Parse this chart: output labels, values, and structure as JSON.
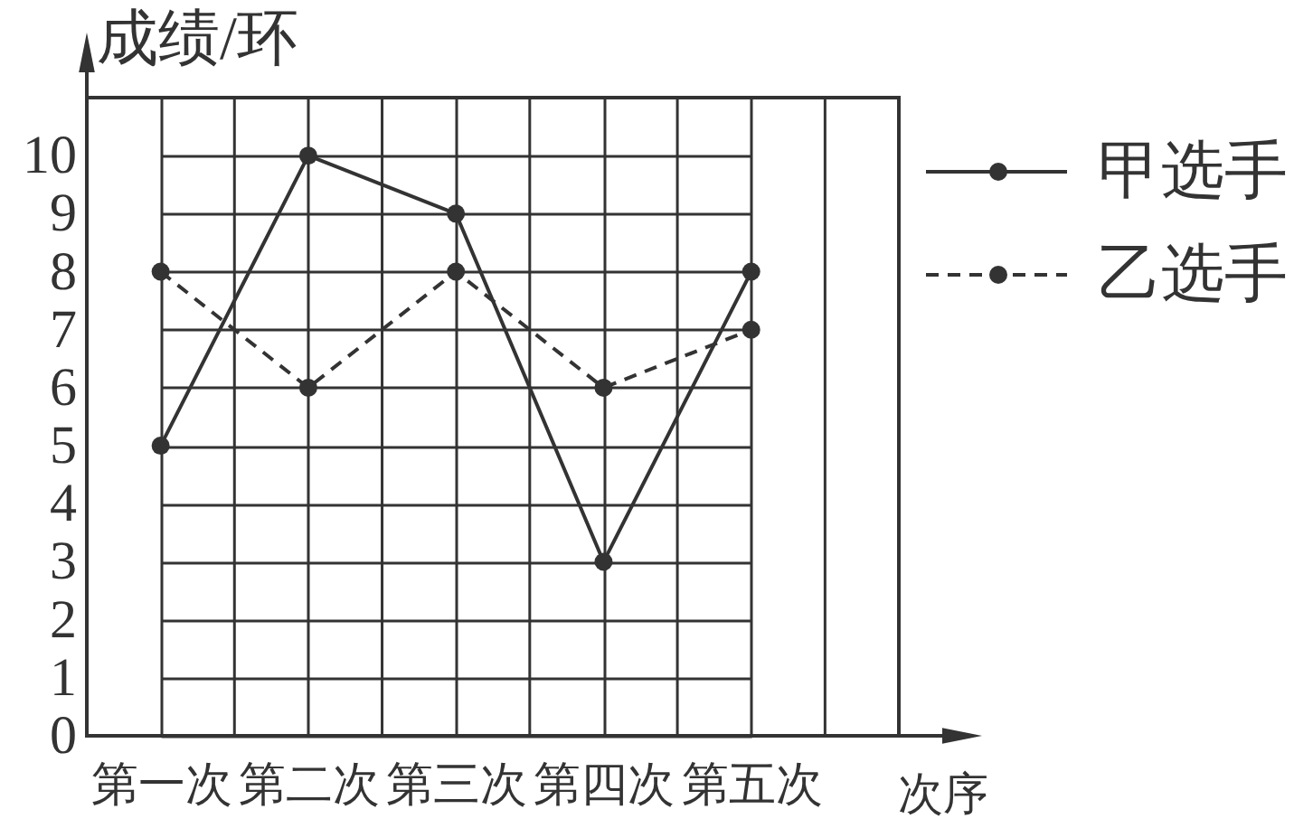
{
  "chart_data": {
    "type": "line",
    "xlabel": "次序",
    "ylabel": "成绩/环",
    "categories": [
      "第一次",
      "第二次",
      "第三次",
      "第四次",
      "第五次"
    ],
    "series": [
      {
        "name": "甲选手",
        "color": "#333333",
        "line_style": "solid",
        "values": [
          5,
          10,
          9,
          3,
          8
        ]
      },
      {
        "name": "乙选手",
        "color": "#333333",
        "line_style": "dashed",
        "values": [
          8,
          6,
          8,
          6,
          7
        ]
      }
    ],
    "ylim": [
      0,
      11
    ],
    "yticks": [
      0,
      1,
      2,
      3,
      4,
      5,
      6,
      7,
      8,
      9,
      10
    ],
    "grid": true,
    "legend": "right",
    "marker": "circle"
  }
}
